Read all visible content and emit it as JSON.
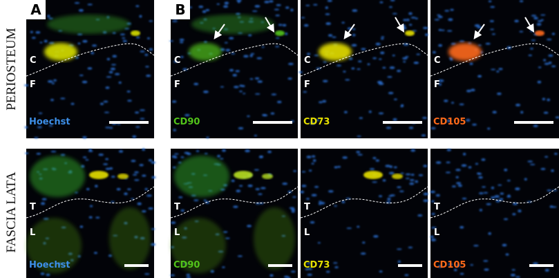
{
  "row_labels": [
    "PERIOSTEUM",
    "FASCIA LATA"
  ],
  "panel_labels": [
    "A",
    "B"
  ],
  "rows": [
    {
      "regions": [
        "C",
        "F"
      ],
      "stains": [
        "Hoechst",
        "CD90",
        "CD73",
        "CD105"
      ]
    },
    {
      "regions": [
        "T",
        "L"
      ],
      "stains": [
        "Hoechst",
        "CD90",
        "CD73",
        "CD105"
      ]
    }
  ]
}
